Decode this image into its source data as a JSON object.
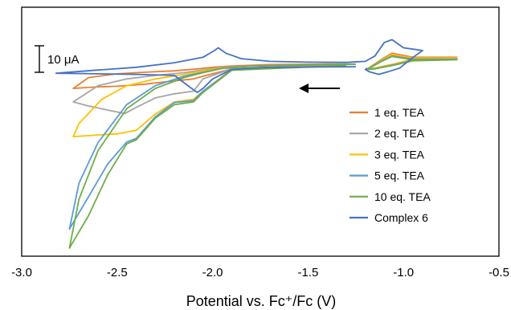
{
  "chart_data": {
    "type": "line",
    "title": "",
    "xlabel": "Potential vs. Fc⁺/Fc (V)",
    "ylabel": "",
    "xlim": [
      -3.0,
      -0.5
    ],
    "x_ticks": [
      "-3.0",
      "-2.5",
      "-2.0",
      "-1.5",
      "-1.0",
      "-0.5"
    ],
    "x_tick_values": [
      -3.0,
      -2.5,
      -2.0,
      -1.5,
      -1.0,
      -0.5
    ],
    "y_unit": "μA",
    "ylim": [
      -70,
      22
    ],
    "grid": false,
    "legend_position": "right",
    "scale_bar": {
      "label": "10 μA",
      "value": 10
    },
    "scan_direction": "negative (arrow pointing left)",
    "series": [
      {
        "name": "1 eq. TEA",
        "color": "#ED7D31",
        "x": [
          -1.3,
          -1.6,
          -1.9,
          -2.05,
          -2.1,
          -2.2,
          -2.35,
          -2.5,
          -2.62,
          -2.73,
          -2.65,
          -2.5,
          -2.35,
          -2.2,
          -2.08,
          -2.0,
          -1.9,
          -1.7,
          -1.4,
          -1.25
        ],
        "y": [
          0.5,
          0.1,
          -0.8,
          -3.5,
          -4.5,
          -5.2,
          -6.4,
          -7.2,
          -7.5,
          -8.0,
          -4.0,
          -2.6,
          -2.0,
          -1.5,
          -0.8,
          -0.2,
          0.3,
          0.8,
          1.0,
          1.0
        ]
      },
      {
        "name": "2 eq. TEA",
        "color": "#A5A5A5",
        "x": [
          -1.3,
          -1.6,
          -1.9,
          -2.05,
          -2.1,
          -2.2,
          -2.3,
          -2.4,
          -2.46,
          -2.55,
          -2.65,
          -2.73,
          -2.6,
          -2.45,
          -2.3,
          -2.15,
          -2.05,
          -1.95,
          -1.8,
          -1.6,
          -1.4,
          -1.25
        ],
        "y": [
          0.5,
          0.0,
          -0.7,
          -4.5,
          -9.0,
          -10.0,
          -11.5,
          -15.0,
          -17.3,
          -16.0,
          -14.5,
          -13.0,
          -7.0,
          -4.5,
          -3.2,
          -2.2,
          -1.2,
          -0.2,
          0.3,
          0.6,
          0.8,
          0.9
        ]
      },
      {
        "name": "3 eq. TEA",
        "color": "#FFC000",
        "x": [
          -1.3,
          -1.6,
          -1.9,
          -2.05,
          -2.1,
          -2.2,
          -2.3,
          -2.4,
          -2.5,
          -2.62,
          -2.73,
          -2.7,
          -2.58,
          -2.45,
          -2.3,
          -2.15,
          -2.05,
          -1.95,
          -1.8,
          -1.6,
          -1.4,
          -1.25
        ],
        "y": [
          0.4,
          -0.2,
          -1.0,
          -9.0,
          -12.0,
          -13.0,
          -17.5,
          -23.5,
          -24.8,
          -25.3,
          -25.8,
          -21.0,
          -12.0,
          -7.0,
          -4.5,
          -2.8,
          -1.5,
          -0.4,
          0.3,
          0.6,
          0.8,
          0.9
        ]
      },
      {
        "name": "5 eq. TEA",
        "color": "#5B9BD5",
        "x": [
          -1.3,
          -1.6,
          -1.9,
          -2.05,
          -2.1,
          -2.2,
          -2.3,
          -2.4,
          -2.45,
          -2.55,
          -2.65,
          -2.75,
          -2.7,
          -2.6,
          -2.45,
          -2.3,
          -2.15,
          -2.05,
          -1.95,
          -1.8,
          -1.6,
          -1.4,
          -1.25
        ],
        "y": [
          0.4,
          -0.3,
          -1.2,
          -9.0,
          -12.5,
          -13.2,
          -18.5,
          -26.5,
          -27.8,
          -36.0,
          -48.0,
          -60.0,
          -43.0,
          -28.0,
          -14.0,
          -7.0,
          -3.5,
          -2.0,
          -0.5,
          0.3,
          0.6,
          0.8,
          0.9
        ]
      },
      {
        "name": "10 eq. TEA",
        "color": "#70AD47",
        "x": [
          -1.3,
          -1.6,
          -1.9,
          -2.05,
          -2.1,
          -2.2,
          -2.3,
          -2.4,
          -2.45,
          -2.55,
          -2.65,
          -2.75,
          -2.7,
          -2.6,
          -2.45,
          -2.3,
          -2.15,
          -2.05,
          -1.95,
          -1.8,
          -1.6,
          -1.4,
          -1.25
        ],
        "y": [
          0.4,
          -0.4,
          -1.3,
          -9.5,
          -13.0,
          -14.0,
          -19.0,
          -27.0,
          -28.5,
          -40.0,
          -55.0,
          -67.0,
          -49.0,
          -31.0,
          -15.5,
          -8.0,
          -4.0,
          -2.2,
          -0.6,
          0.2,
          0.5,
          0.8,
          0.9
        ]
      },
      {
        "name": "Complex 6",
        "color": "#4472C4",
        "x": [
          -1.25,
          -1.5,
          -1.75,
          -1.9,
          -2.0,
          -2.05,
          -2.08,
          -2.12,
          -2.2,
          -2.4,
          -2.6,
          -2.82,
          -2.6,
          -2.4,
          -2.2,
          -2.05,
          -1.99,
          -1.97,
          -1.93,
          -1.85,
          -1.7,
          -1.5,
          -1.3,
          -1.2,
          -1.15,
          -1.1,
          -1.06,
          -1.0,
          -0.9,
          -0.95,
          -1.02,
          -1.08,
          -1.13,
          -1.18,
          -1.2,
          -1.19
        ],
        "y": [
          0.0,
          -0.1,
          -0.3,
          -1.0,
          -4.5,
          -8.0,
          -9.5,
          -7.5,
          -3.2,
          -2.8,
          -2.6,
          -2.4,
          -1.2,
          -0.2,
          1.5,
          3.5,
          6.0,
          7.0,
          5.0,
          3.0,
          2.0,
          1.7,
          1.6,
          2.0,
          4.0,
          9.0,
          10.0,
          7.0,
          6.0,
          3.5,
          -0.5,
          -1.8,
          -2.8,
          -1.8,
          -1.0,
          -0.5
        ]
      }
    ],
    "extra_traces": [
      {
        "color": "#ED7D31",
        "x": [
          -1.19,
          -1.12,
          -1.06,
          -0.95,
          -0.72,
          -0.95,
          -1.05,
          -1.15,
          -1.19
        ],
        "y": [
          -0.8,
          2.5,
          5.0,
          3.5,
          3.5,
          2.8,
          1.0,
          -0.5,
          -0.8
        ]
      },
      {
        "color": "#A5A5A5",
        "x": [
          -1.19,
          -1.12,
          -1.06,
          -0.95,
          -0.72,
          -0.95,
          -1.05,
          -1.15,
          -1.19
        ],
        "y": [
          -0.8,
          2.0,
          4.2,
          3.0,
          3.0,
          2.5,
          0.8,
          -0.6,
          -0.8
        ]
      },
      {
        "color": "#FFC000",
        "x": [
          -1.19,
          -1.12,
          -1.06,
          -0.95,
          -0.72,
          -0.95,
          -1.05,
          -1.15,
          -1.19
        ],
        "y": [
          -0.8,
          2.2,
          4.6,
          3.2,
          3.2,
          2.6,
          0.9,
          -0.5,
          -0.8
        ]
      },
      {
        "color": "#5B9BD5",
        "x": [
          -1.19,
          -1.12,
          -1.06,
          -0.95,
          -0.72,
          -0.95,
          -1.05,
          -1.15,
          -1.19
        ],
        "y": [
          -0.9,
          2.0,
          4.0,
          2.8,
          2.8,
          2.3,
          0.7,
          -0.7,
          -0.9
        ]
      },
      {
        "color": "#70AD47",
        "x": [
          -1.19,
          -1.12,
          -1.06,
          -0.95,
          -0.72,
          -0.95,
          -1.05,
          -1.15,
          -1.19
        ],
        "y": [
          -1.0,
          1.8,
          3.8,
          2.6,
          2.6,
          2.2,
          0.6,
          -0.8,
          -1.0
        ]
      }
    ]
  }
}
